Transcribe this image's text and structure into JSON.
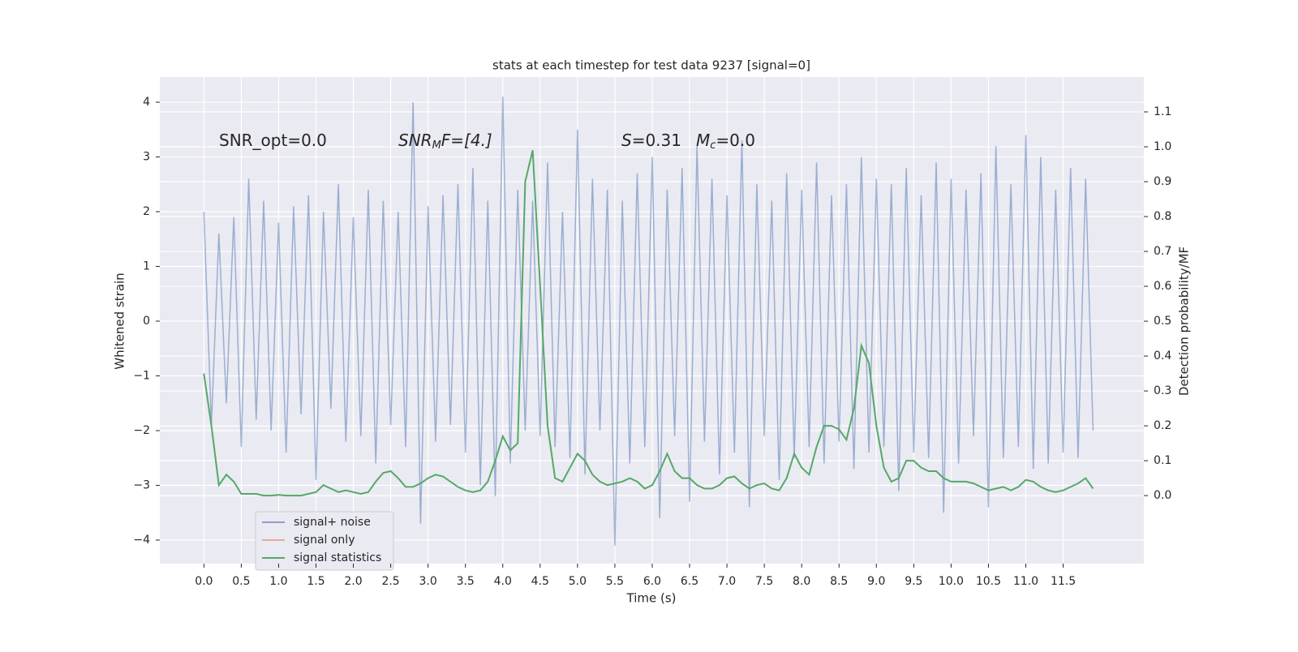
{
  "chart_data": {
    "type": "line",
    "title": "stats at each timestep for test data 9237 [signal=0]",
    "xlabel": "Time (s)",
    "ylabel": "Whitened strain",
    "y2label": "Detection probability/MF",
    "annotations": [
      [
        "SNR_opt=0.0"
      ],
      [
        "SNR",
        "M",
        "F=[4.]"
      ],
      [
        "S",
        "=0.31"
      ],
      [
        "M",
        "c",
        "=0.0"
      ]
    ],
    "x": [
      0,
      0.1,
      0.2,
      0.3,
      0.4,
      0.5,
      0.6,
      0.7,
      0.8,
      0.9,
      1,
      1.1,
      1.2,
      1.3,
      1.4,
      1.5,
      1.6,
      1.7,
      1.8,
      1.9,
      2,
      2.1,
      2.2,
      2.3,
      2.4,
      2.5,
      2.6,
      2.7,
      2.8,
      2.9,
      3,
      3.1,
      3.2,
      3.3,
      3.4,
      3.5,
      3.6,
      3.7,
      3.8,
      3.9,
      4,
      4.1,
      4.2,
      4.3,
      4.4,
      4.5,
      4.6,
      4.7,
      4.8,
      4.9,
      5,
      5.1,
      5.2,
      5.3,
      5.4,
      5.5,
      5.6,
      5.7,
      5.8,
      5.9,
      6,
      6.1,
      6.2,
      6.3,
      6.4,
      6.5,
      6.6,
      6.7,
      6.8,
      6.9,
      7,
      7.1,
      7.2,
      7.3,
      7.4,
      7.5,
      7.6,
      7.7,
      7.8,
      7.9,
      8,
      8.1,
      8.2,
      8.3,
      8.4,
      8.5,
      8.6,
      8.7,
      8.8,
      8.9,
      9,
      9.1,
      9.2,
      9.3,
      9.4,
      9.5,
      9.6,
      9.7,
      9.8,
      9.9,
      10,
      10.1,
      10.2,
      10.3,
      10.4,
      10.5,
      10.6,
      10.7,
      10.8,
      10.9,
      11,
      11.1,
      11.2,
      11.3,
      11.4,
      11.5,
      11.6,
      11.7,
      11.8,
      11.9
    ],
    "series": [
      {
        "name": "signal+ noise",
        "color": "#4c72b0",
        "values": [
          2.0,
          -1.9,
          1.6,
          -1.5,
          1.9,
          -2.3,
          2.6,
          -1.8,
          2.2,
          -2.0,
          1.8,
          -2.4,
          2.1,
          -1.7,
          2.3,
          -2.9,
          2.0,
          -1.6,
          2.5,
          -2.2,
          1.9,
          -2.1,
          2.4,
          -2.6,
          2.2,
          -1.9,
          2.0,
          -2.3,
          4.0,
          -3.7,
          2.1,
          -2.2,
          2.3,
          -1.9,
          2.5,
          -2.4,
          2.8,
          -3.0,
          2.2,
          -3.2,
          4.1,
          -2.6,
          2.4,
          -2.0,
          2.2,
          -2.1,
          2.9,
          -2.3,
          2.0,
          -2.5,
          3.5,
          -2.8,
          2.6,
          -2.0,
          2.4,
          -4.1,
          2.2,
          -2.6,
          2.7,
          -2.3,
          3.0,
          -3.6,
          2.4,
          -2.1,
          2.8,
          -3.3,
          3.2,
          -2.2,
          2.6,
          -2.8,
          2.3,
          -2.4,
          3.3,
          -3.4,
          2.5,
          -2.1,
          2.2,
          -2.9,
          2.7,
          -2.5,
          2.4,
          -2.3,
          2.9,
          -2.6,
          2.3,
          -2.2,
          2.5,
          -2.7,
          3.0,
          -2.4,
          2.6,
          -2.3,
          2.5,
          -3.1,
          2.8,
          -2.4,
          2.3,
          -2.5,
          2.9,
          -3.5,
          2.6,
          -2.6,
          2.4,
          -2.1,
          2.7,
          -3.4,
          3.2,
          -2.5,
          2.5,
          -2.3,
          3.4,
          -2.7,
          3.0,
          -2.6,
          2.4,
          -2.4,
          2.8,
          -2.5,
          2.6,
          -2.0
        ]
      },
      {
        "name": "signal only",
        "color": "#dd8452"
      },
      {
        "name": "signal statistics",
        "color": "#55a868",
        "axis": "y2",
        "values": [
          0.35,
          0.2,
          0.03,
          0.06,
          0.04,
          0.005,
          0.005,
          0.005,
          0,
          0,
          0.002,
          0,
          0,
          0,
          0.005,
          0.01,
          0.03,
          0.02,
          0.01,
          0.015,
          0.01,
          0.005,
          0.01,
          0.04,
          0.065,
          0.07,
          0.05,
          0.025,
          0.025,
          0.035,
          0.05,
          0.06,
          0.055,
          0.04,
          0.025,
          0.015,
          0.01,
          0.015,
          0.04,
          0.1,
          0.17,
          0.13,
          0.15,
          0.9,
          0.99,
          0.6,
          0.2,
          0.05,
          0.04,
          0.08,
          0.12,
          0.1,
          0.06,
          0.04,
          0.03,
          0.035,
          0.04,
          0.05,
          0.04,
          0.02,
          0.03,
          0.07,
          0.12,
          0.07,
          0.05,
          0.05,
          0.03,
          0.02,
          0.02,
          0.03,
          0.05,
          0.055,
          0.035,
          0.02,
          0.03,
          0.035,
          0.02,
          0.015,
          0.05,
          0.12,
          0.08,
          0.06,
          0.14,
          0.2,
          0.2,
          0.19,
          0.16,
          0.25,
          0.43,
          0.38,
          0.2,
          0.08,
          0.04,
          0.05,
          0.1,
          0.1,
          0.08,
          0.07,
          0.07,
          0.05,
          0.04,
          0.04,
          0.04,
          0.035,
          0.025,
          0.015,
          0.02,
          0.025,
          0.015,
          0.025,
          0.045,
          0.04,
          0.025,
          0.015,
          0.01,
          0.015,
          0.025,
          0.035,
          0.05,
          0.02
        ]
      }
    ],
    "xlim": [
      -0.59,
      12.58
    ],
    "xticks": [
      {
        "value": 0,
        "label": "0.0"
      },
      0.5,
      {
        "value": 1,
        "label": "1.0"
      },
      1.5,
      {
        "value": 2,
        "label": "2.0"
      },
      2.5,
      {
        "value": 3,
        "label": "3.0"
      },
      3.5,
      {
        "value": 4,
        "label": "4.0"
      },
      4.5,
      {
        "value": 5,
        "label": "5.0"
      },
      5.5,
      {
        "value": 6,
        "label": "6.0"
      },
      6.5,
      {
        "value": 7,
        "label": "7.0"
      },
      7.5,
      {
        "value": 8,
        "label": "8.0"
      },
      8.5,
      {
        "value": 9,
        "label": "9.0"
      },
      9.5,
      {
        "value": 10,
        "label": "10.0"
      },
      10.5,
      {
        "value": 11,
        "label": "11.0"
      },
      11.5
    ],
    "ylim": [
      -4.43,
      4.46
    ],
    "yticks": [
      {
        "value": -4,
        "label": "−4"
      },
      {
        "value": -3,
        "label": "−3"
      },
      {
        "value": -2,
        "label": "−2"
      },
      {
        "value": -1,
        "label": "−1"
      },
      0,
      1,
      2,
      3,
      4
    ],
    "y2lim": [
      -0.195,
      1.2
    ],
    "y2ticks": [
      {
        "value": 0,
        "label": "0.0"
      },
      0.1,
      0.2,
      0.3,
      0.4,
      0.5,
      0.6,
      0.7,
      0.8,
      0.9,
      {
        "value": 1,
        "label": "1.0"
      },
      1.1
    ],
    "grid": true,
    "legend": "lower left"
  }
}
